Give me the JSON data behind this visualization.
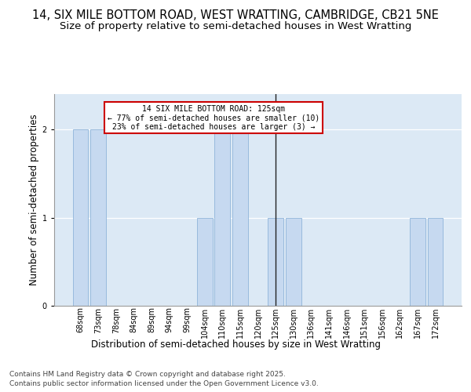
{
  "title_line1": "14, SIX MILE BOTTOM ROAD, WEST WRATTING, CAMBRIDGE, CB21 5NE",
  "title_line2": "Size of property relative to semi-detached houses in West Wratting",
  "categories": [
    "68sqm",
    "73sqm",
    "78sqm",
    "84sqm",
    "89sqm",
    "94sqm",
    "99sqm",
    "104sqm",
    "110sqm",
    "115sqm",
    "120sqm",
    "125sqm",
    "130sqm",
    "136sqm",
    "141sqm",
    "146sqm",
    "151sqm",
    "156sqm",
    "162sqm",
    "167sqm",
    "172sqm"
  ],
  "values": [
    2,
    2,
    0,
    0,
    0,
    0,
    0,
    1,
    2,
    2,
    0,
    1,
    1,
    0,
    0,
    0,
    0,
    0,
    0,
    1,
    1
  ],
  "bar_color": "#c6d9f0",
  "bar_edge_color": "#8fb4d9",
  "subject_index": 11,
  "subject_line_color": "#222222",
  "annotation_title": "14 SIX MILE BOTTOM ROAD: 125sqm",
  "annotation_line1": "← 77% of semi-detached houses are smaller (10)",
  "annotation_line2": "23% of semi-detached houses are larger (3) →",
  "annotation_box_color": "#cc0000",
  "ylabel": "Number of semi-detached properties",
  "xlabel": "Distribution of semi-detached houses by size in West Wratting",
  "ylim": [
    0,
    2.4
  ],
  "yticks": [
    0,
    1,
    2
  ],
  "footer_line1": "Contains HM Land Registry data © Crown copyright and database right 2025.",
  "footer_line2": "Contains public sector information licensed under the Open Government Licence v3.0.",
  "bg_color": "#dce9f5",
  "fig_bg_color": "#ffffff",
  "title_fontsize": 10.5,
  "subtitle_fontsize": 9.5,
  "axis_label_fontsize": 8.5,
  "tick_fontsize": 7,
  "footer_fontsize": 6.5
}
